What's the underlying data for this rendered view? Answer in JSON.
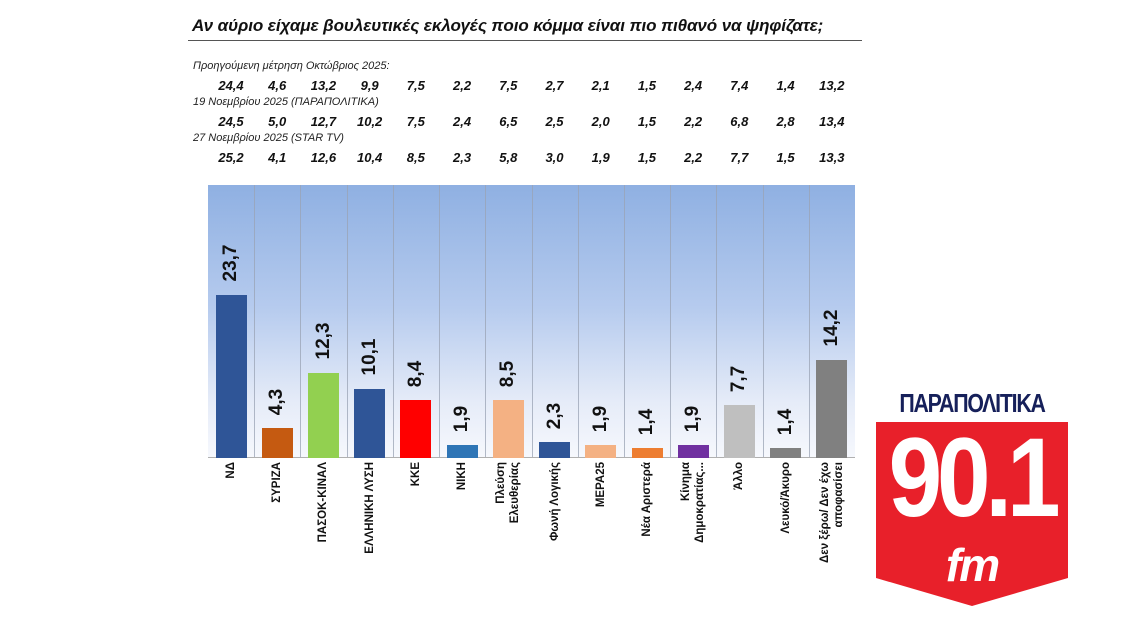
{
  "title": "Αν αύριο είχαμε βουλευτικές εκλογές ποιο κόμμα είναι πιο πιθανό να ψηφίζατε;",
  "previous_measurements": [
    {
      "label": "Προηγούμενη μέτρηση Οκτώβριος 2025:",
      "values": [
        "24,4",
        "4,6",
        "13,2",
        "9,9",
        "7,5",
        "2,2",
        "7,5",
        "2,7",
        "2,1",
        "1,5",
        "2,4",
        "7,4",
        "1,4",
        "13,2"
      ]
    },
    {
      "label": "19 Νοεμβρίου 2025 (ΠΑΡΑΠΟΛΙΤΙΚΑ)",
      "values": [
        "24,5",
        "5,0",
        "12,7",
        "10,2",
        "7,5",
        "2,4",
        "6,5",
        "2,5",
        "2,0",
        "1,5",
        "2,2",
        "6,8",
        "2,8",
        "13,4"
      ]
    },
    {
      "label": "27 Νοεμβρίου 2025 (STAR TV)",
      "values": [
        "25,2",
        "4,1",
        "12,6",
        "10,4",
        "8,5",
        "2,3",
        "5,8",
        "3,0",
        "1,9",
        "1,5",
        "2,2",
        "7,7",
        "1,5",
        "13,3"
      ]
    }
  ],
  "chart_data": {
    "type": "bar",
    "title": "Αν αύριο είχαμε βουλευτικές εκλογές ποιο κόμμα είναι πιο πιθανό να ψηφίζατε;",
    "xlabel": "",
    "ylabel": "",
    "ylim": [
      0,
      40
    ],
    "grid": "vertical category separators",
    "legend": "none",
    "categories": [
      "ΝΔ",
      "ΣΥΡΙΖΑ",
      "ΠΑΣΟΚ-ΚΙΝΑΛ",
      "ΕΛΛΗΝΙΚΗ ΛΥΣΗ",
      "ΚΚΕ",
      "ΝΙΚΗ",
      "Πλεύση Ελευθερίας",
      "Φωνή Λογικής",
      "ΜΕΡΑ25",
      "Νέα Αριστερά",
      "Κίνημα Δημοκρατίας...",
      "Άλλο",
      "Λευκό/Άκυρο",
      "Δεν ξέρω/ Δεν έχω αποφασίσει"
    ],
    "category_labels_display": [
      "ΝΔ",
      "ΣΥΡΙΖΑ",
      "ΠΑΣΟΚ-ΚΙΝΑΛ",
      "ΕΛΛΗΝΙΚΗ ΛΥΣΗ",
      "ΚΚΕ",
      "ΝΙΚΗ",
      "Πλεύση\nΕλευθερίας",
      "Φωνή Λογικής",
      "ΜΕΡΑ25",
      "Νέα Αριστερά",
      "Κίνημα\nΔημοκρατίας...",
      "Άλλο",
      "Λευκό/Άκυρο",
      "Δεν ξέρω/ Δεν έχω\nαποφασίσει"
    ],
    "values": [
      23.7,
      4.3,
      12.3,
      10.1,
      8.4,
      1.9,
      8.5,
      2.3,
      1.9,
      1.4,
      1.9,
      7.7,
      1.4,
      14.2
    ],
    "value_labels": [
      "23,7",
      "4,3",
      "12,3",
      "10,1",
      "8,4",
      "1,9",
      "8,5",
      "2,3",
      "1,9",
      "1,4",
      "1,9",
      "7,7",
      "1,4",
      "14,2"
    ],
    "colors": [
      "#2f5597",
      "#c55a11",
      "#92d050",
      "#2f5597",
      "#ff0000",
      "#2e75b6",
      "#f4b183",
      "#2f5597",
      "#f4b183",
      "#ed7d31",
      "#7030a0",
      "#bfbfbf",
      "#808080",
      "#808080"
    ]
  },
  "logo": {
    "name": "ΠΑΡΑΠΟΛΙΤΙΚΑ",
    "frequency": "90.1",
    "band": "fm",
    "colors": {
      "name": "#16205a",
      "shield": "#e8202a",
      "text": "#ffffff"
    }
  }
}
